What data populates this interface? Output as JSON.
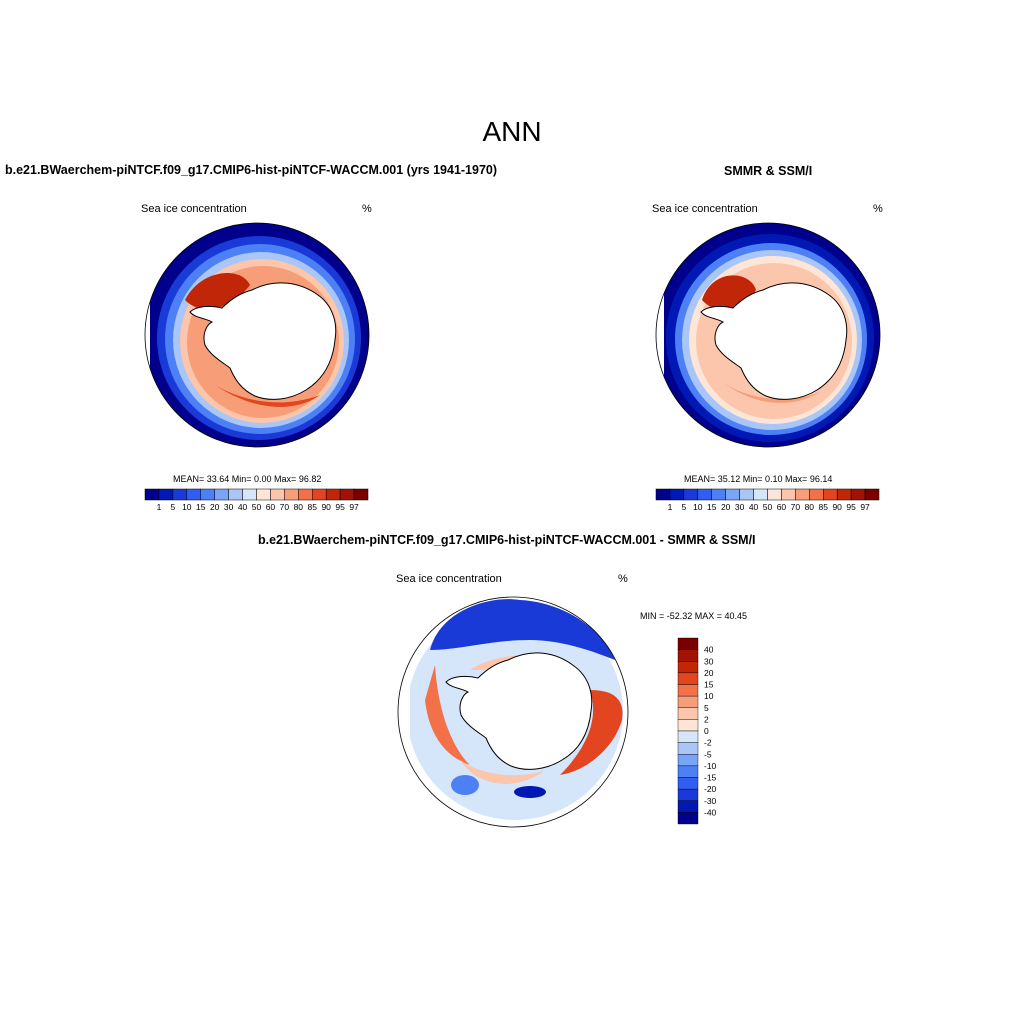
{
  "figure": {
    "title": "ANN"
  },
  "panels": {
    "model": {
      "title": "b.e21.BWaerchem-piNTCF.f09_g17.CMIP6-hist-piNTCF-WACCM.001 (yrs 1941-1970)",
      "left_label": "Sea ice concentration",
      "right_label": "%",
      "stats": {
        "mean": "33.64",
        "min": "0.00",
        "max": "96.82"
      },
      "stats_text": "MEAN=  33.64  Min=   0.00  Max=  96.82"
    },
    "obs": {
      "title": "SMMR & SSM/I",
      "left_label": "Sea ice concentration",
      "right_label": "%",
      "stats": {
        "mean": "35.12",
        "min": "0.10",
        "max": "96.14"
      },
      "stats_text": "MEAN=  35.12  Min=   0.10  Max=  96.14"
    },
    "diff": {
      "title": "b.e21.BWaerchem-piNTCF.f09_g17.CMIP6-hist-piNTCF-WACCM.001 - SMMR & SSM/I",
      "left_label": "Sea ice concentration",
      "right_label": "%",
      "minmax_text": "MIN = -52.32 MAX =  40.45"
    }
  },
  "colorbars": {
    "concentration": {
      "labels": [
        "1",
        "5",
        "10",
        "15",
        "20",
        "30",
        "40",
        "50",
        "60",
        "70",
        "80",
        "85",
        "90",
        "95",
        "97"
      ],
      "colors": [
        "#00008c",
        "#0018b4",
        "#1a3ad8",
        "#2f5ef0",
        "#4d7ff5",
        "#7aa4f5",
        "#a9c6f7",
        "#d6e6fa",
        "#fde6d8",
        "#fbc6ab",
        "#f79e79",
        "#f27149",
        "#e2451f",
        "#c22608",
        "#a01204",
        "#7a0000"
      ]
    },
    "difference": {
      "labels": [
        "40",
        "30",
        "20",
        "15",
        "10",
        "5",
        "2",
        "0",
        "-2",
        "-5",
        "-10",
        "-15",
        "-20",
        "-30",
        "-40"
      ],
      "colors": [
        "#7a0000",
        "#a01204",
        "#c22608",
        "#e2451f",
        "#f27149",
        "#f79e79",
        "#fbc6ab",
        "#fde6d8",
        "#d6e6fa",
        "#a9c6f7",
        "#7aa4f5",
        "#4d7ff5",
        "#2f5ef0",
        "#1a3ad8",
        "#0018b4",
        "#00008c"
      ]
    }
  }
}
